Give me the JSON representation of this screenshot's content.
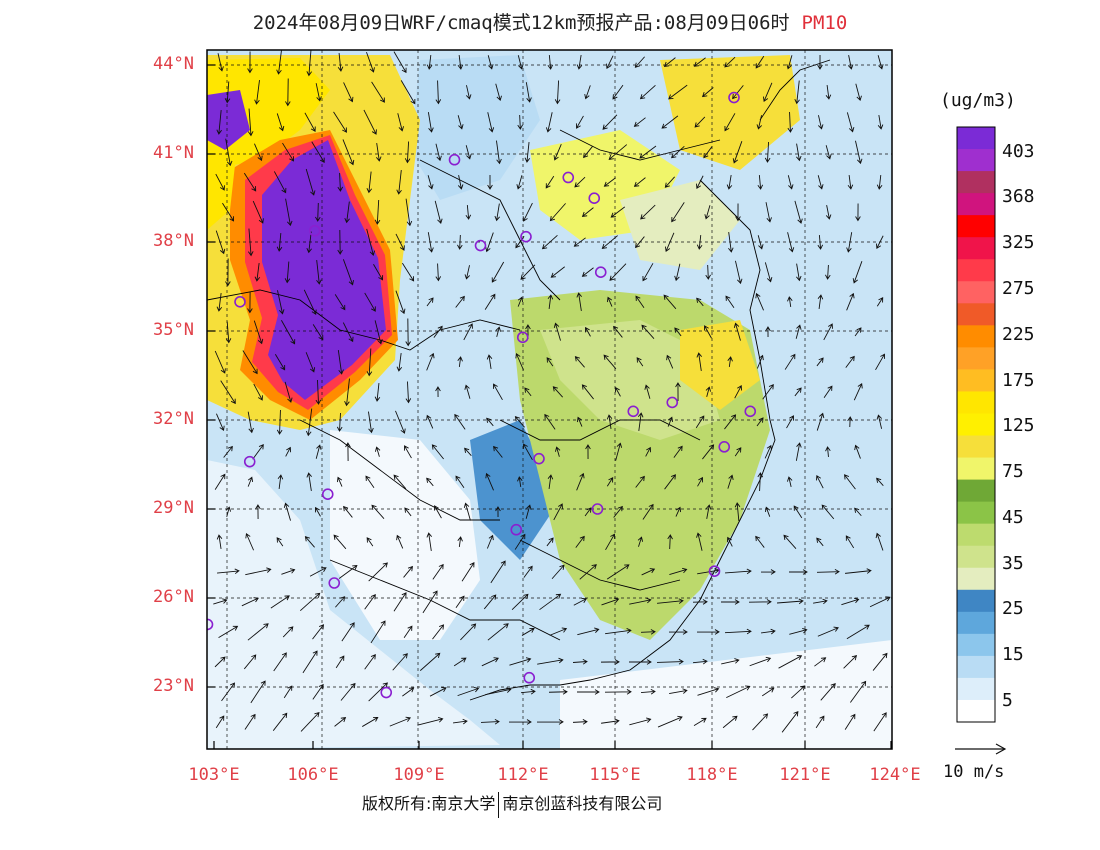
{
  "title": {
    "main": "2024年08月09日WRF/cmaq模式12km预报产品:08月09日06时",
    "variable": "PM10"
  },
  "lat_labels": [
    "44°N",
    "41°N",
    "38°N",
    "35°N",
    "32°N",
    "29°N",
    "26°N",
    "23°N"
  ],
  "lon_labels": [
    "103°E",
    "106°E",
    "109°E",
    "112°E",
    "115°E",
    "118°E",
    "121°E",
    "124°E"
  ],
  "legend": {
    "unit": "(ug/m3)",
    "labels": [
      "403",
      "368",
      "325",
      "275",
      "225",
      "175",
      "125",
      "75",
      "45",
      "35",
      "25",
      "15",
      "5"
    ],
    "colors": [
      "#7b2bd6",
      "#9f2fcf",
      "#b03060",
      "#d0147e",
      "#ff0000",
      "#f0144a",
      "#ff3a4a",
      "#ff6262",
      "#f05a28",
      "#ff8c00",
      "#ffa126",
      "#ffbd22",
      "#ffe600",
      "#fff000",
      "#f6df3a",
      "#f0f56a",
      "#6fa836",
      "#8bc447",
      "#bddb6e",
      "#cfe38c",
      "#e4edbf",
      "#3f86c4",
      "#5ea7dc",
      "#8cc6ec",
      "#b9dcf4",
      "#ddeefa",
      "#ffffff"
    ]
  },
  "wind_reference": "10 m/s",
  "copyright": {
    "part1": "版权所有:南京大学",
    "part2": "南京创蓝科技有限公司"
  },
  "stations": [
    {
      "lon": 119.0,
      "lat": 42.9
    },
    {
      "lon": 110.4,
      "lat": 40.8
    },
    {
      "lon": 113.9,
      "lat": 40.2
    },
    {
      "lon": 114.7,
      "lat": 39.5
    },
    {
      "lon": 111.2,
      "lat": 37.9
    },
    {
      "lon": 112.6,
      "lat": 38.2
    },
    {
      "lon": 114.9,
      "lat": 37.0
    },
    {
      "lon": 106.1,
      "lat": 38.4
    },
    {
      "lon": 103.8,
      "lat": 36.0
    },
    {
      "lon": 112.5,
      "lat": 34.8
    },
    {
      "lon": 115.9,
      "lat": 32.3
    },
    {
      "lon": 117.1,
      "lat": 32.6
    },
    {
      "lon": 119.5,
      "lat": 32.3
    },
    {
      "lon": 118.7,
      "lat": 31.1
    },
    {
      "lon": 113.0,
      "lat": 30.7
    },
    {
      "lon": 104.1,
      "lat": 30.6
    },
    {
      "lon": 106.5,
      "lat": 29.5
    },
    {
      "lon": 114.8,
      "lat": 29.0
    },
    {
      "lon": 112.3,
      "lat": 28.3
    },
    {
      "lon": 118.4,
      "lat": 26.9
    },
    {
      "lon": 106.7,
      "lat": 26.5
    },
    {
      "lon": 102.8,
      "lat": 25.1
    },
    {
      "lon": 112.7,
      "lat": 23.3
    },
    {
      "lon": 108.3,
      "lat": 22.8
    }
  ]
}
